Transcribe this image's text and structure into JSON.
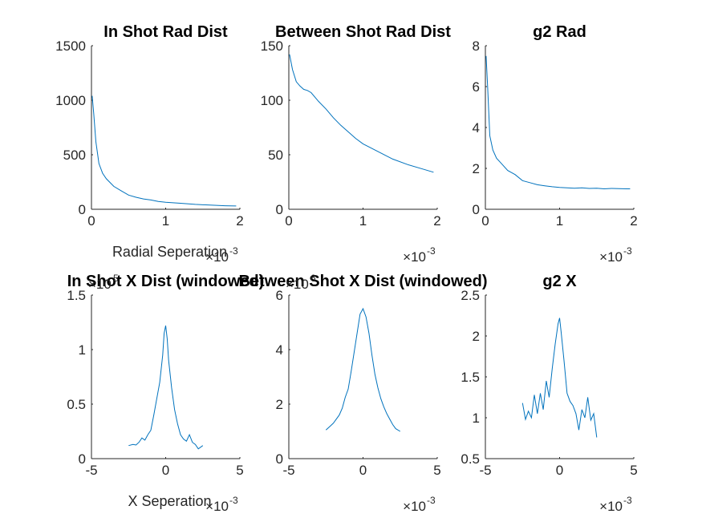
{
  "figure": {
    "background": "#ffffff",
    "line_color": "#0072bd",
    "axis_color": "#262626"
  },
  "chart_data": [
    {
      "type": "line",
      "title": "In Shot Rad Dist",
      "xlabel": "Radial Seperation",
      "ylabel": "",
      "xlim": [
        0,
        0.002
      ],
      "ylim": [
        0,
        1500
      ],
      "xticks": [
        0,
        0.001,
        0.002
      ],
      "xtick_labels": [
        "0",
        "1",
        "2"
      ],
      "yticks": [
        0,
        500,
        1000,
        1500
      ],
      "ytick_labels": [
        "0",
        "500",
        "1000",
        "1500"
      ],
      "x_multiplier": "×10",
      "x_exponent": "-3",
      "y_multiplier": "",
      "y_exponent": "",
      "series": [
        {
          "x": [
            1e-05,
            3e-05,
            6e-05,
            0.0001,
            0.00015,
            0.0002,
            0.0003,
            0.0004,
            0.0005,
            0.0006,
            0.0007,
            0.0008,
            0.0009,
            0.001,
            0.0012,
            0.0014,
            0.0016,
            0.0018,
            0.00195
          ],
          "y": [
            1040,
            880,
            620,
            420,
            330,
            280,
            210,
            170,
            130,
            110,
            95,
            85,
            72,
            65,
            55,
            45,
            38,
            32,
            30
          ]
        }
      ]
    },
    {
      "type": "line",
      "title": "Between Shot Rad Dist",
      "xlabel": "",
      "ylabel": "",
      "xlim": [
        0,
        0.002
      ],
      "ylim": [
        0,
        150
      ],
      "xticks": [
        0,
        0.001,
        0.002
      ],
      "xtick_labels": [
        "0",
        "1",
        "2"
      ],
      "yticks": [
        0,
        50,
        100,
        150
      ],
      "ytick_labels": [
        "0",
        "50",
        "100",
        "150"
      ],
      "x_multiplier": "×10",
      "x_exponent": "-3",
      "y_multiplier": "",
      "y_exponent": "",
      "series": [
        {
          "x": [
            1e-05,
            5e-05,
            0.0001,
            0.00015,
            0.0002,
            0.00025,
            0.0003,
            0.0004,
            0.0005,
            0.0006,
            0.0007,
            0.0008,
            0.0009,
            0.001,
            0.0012,
            0.0014,
            0.0016,
            0.0018,
            0.00195
          ],
          "y": [
            142,
            128,
            117,
            113,
            110,
            109,
            107,
            99,
            92,
            84,
            77,
            71,
            65,
            60,
            53,
            46,
            41,
            37,
            34
          ]
        }
      ]
    },
    {
      "type": "line",
      "title": "g2 Rad",
      "xlabel": "",
      "ylabel": "",
      "xlim": [
        0,
        0.002
      ],
      "ylim": [
        0,
        8
      ],
      "xticks": [
        0,
        0.001,
        0.002
      ],
      "xtick_labels": [
        "0",
        "1",
        "2"
      ],
      "yticks": [
        0,
        2,
        4,
        6,
        8
      ],
      "ytick_labels": [
        "0",
        "2",
        "4",
        "6",
        "8"
      ],
      "x_multiplier": "×10",
      "x_exponent": "-3",
      "y_multiplier": "",
      "y_exponent": "",
      "series": [
        {
          "x": [
            1e-05,
            3e-05,
            6e-05,
            0.0001,
            0.00015,
            0.0002,
            0.0003,
            0.0004,
            0.0005,
            0.0006,
            0.0007,
            0.0008,
            0.0009,
            0.001,
            0.0011,
            0.0012,
            0.0013,
            0.0014,
            0.0015,
            0.0016,
            0.0017,
            0.0018,
            0.0019,
            0.00195
          ],
          "y": [
            7.5,
            6.0,
            3.6,
            2.9,
            2.5,
            2.3,
            1.9,
            1.7,
            1.4,
            1.3,
            1.2,
            1.15,
            1.1,
            1.07,
            1.05,
            1.03,
            1.05,
            1.02,
            1.03,
            1.0,
            1.02,
            1.01,
            1.0,
            1.0
          ]
        }
      ]
    },
    {
      "type": "line",
      "title": "In Shot X Dist (windowed)",
      "xlabel": "X Seperation",
      "ylabel": "",
      "xlim": [
        -0.005,
        0.005
      ],
      "ylim": [
        0,
        150000
      ],
      "xticks": [
        -0.005,
        0,
        0.005
      ],
      "xtick_labels": [
        "-5",
        "0",
        "5"
      ],
      "yticks": [
        0,
        50000,
        100000,
        150000
      ],
      "ytick_labels": [
        "0",
        "0.5",
        "1",
        "1.5"
      ],
      "x_multiplier": "×10",
      "x_exponent": "-3",
      "y_multiplier": "×10",
      "y_exponent": "5",
      "series": [
        {
          "x": [
            -0.0025,
            -0.0022,
            -0.002,
            -0.0018,
            -0.0016,
            -0.0014,
            -0.0012,
            -0.001,
            -0.0008,
            -0.0006,
            -0.0004,
            -0.0002,
            -0.0001,
            0.0,
            0.0001,
            0.0002,
            0.0004,
            0.0006,
            0.0008,
            0.001,
            0.0012,
            0.0014,
            0.0016,
            0.0018,
            0.002,
            0.0022,
            0.0025
          ],
          "y": [
            12000,
            13000,
            12500,
            15000,
            19000,
            17000,
            22000,
            26000,
            40000,
            55000,
            70000,
            95000,
            115000,
            122000,
            110000,
            90000,
            65000,
            45000,
            32000,
            22000,
            18000,
            16000,
            22000,
            15000,
            13000,
            9000,
            12000
          ]
        }
      ]
    },
    {
      "type": "line",
      "title": "Between Shot X Dist (windowed)",
      "xlabel": "",
      "ylabel": "",
      "xlim": [
        -0.005,
        0.005
      ],
      "ylim": [
        0,
        6000000
      ],
      "xticks": [
        -0.005,
        0,
        0.005
      ],
      "xtick_labels": [
        "-5",
        "0",
        "5"
      ],
      "yticks": [
        0,
        2000000,
        4000000,
        6000000
      ],
      "ytick_labels": [
        "0",
        "2",
        "4",
        "6"
      ],
      "x_multiplier": "×10",
      "x_exponent": "-3",
      "y_multiplier": "×10",
      "y_exponent": "6",
      "series": [
        {
          "x": [
            -0.0025,
            -0.0022,
            -0.002,
            -0.0018,
            -0.0016,
            -0.0014,
            -0.0012,
            -0.001,
            -0.0008,
            -0.0006,
            -0.0004,
            -0.0002,
            0.0,
            0.0002,
            0.0004,
            0.0006,
            0.0008,
            0.001,
            0.0012,
            0.0014,
            0.0016,
            0.0018,
            0.002,
            0.0022,
            0.0025
          ],
          "y": [
            1050000,
            1200000,
            1300000,
            1450000,
            1600000,
            1850000,
            2250000,
            2550000,
            3200000,
            3900000,
            4600000,
            5300000,
            5500000,
            5200000,
            4600000,
            3800000,
            3100000,
            2600000,
            2200000,
            1900000,
            1650000,
            1450000,
            1250000,
            1100000,
            1000000
          ]
        }
      ]
    },
    {
      "type": "line",
      "title": "g2 X",
      "xlabel": "",
      "ylabel": "",
      "xlim": [
        -0.005,
        0.005
      ],
      "ylim": [
        0.5,
        2.5
      ],
      "xticks": [
        -0.005,
        0,
        0.005
      ],
      "xtick_labels": [
        "-5",
        "0",
        "5"
      ],
      "yticks": [
        0.5,
        1,
        1.5,
        2,
        2.5
      ],
      "ytick_labels": [
        "0.5",
        "1",
        "1.5",
        "2",
        "2.5"
      ],
      "x_multiplier": "×10",
      "x_exponent": "-3",
      "y_multiplier": "",
      "y_exponent": "",
      "series": [
        {
          "x": [
            -0.0025,
            -0.0023,
            -0.0021,
            -0.0019,
            -0.0017,
            -0.0015,
            -0.0013,
            -0.0011,
            -0.0009,
            -0.0007,
            -0.0005,
            -0.0003,
            -0.0001,
            0.0,
            0.0001,
            0.0003,
            0.0005,
            0.0007,
            0.0009,
            0.0011,
            0.0013,
            0.0015,
            0.0017,
            0.0019,
            0.0021,
            0.0023,
            0.0025
          ],
          "y": [
            1.18,
            0.98,
            1.08,
            1.0,
            1.28,
            1.05,
            1.3,
            1.1,
            1.45,
            1.25,
            1.6,
            1.9,
            2.15,
            2.22,
            2.05,
            1.7,
            1.3,
            1.2,
            1.15,
            1.05,
            0.85,
            1.1,
            1.0,
            1.25,
            0.97,
            1.05,
            0.76
          ]
        }
      ]
    }
  ]
}
